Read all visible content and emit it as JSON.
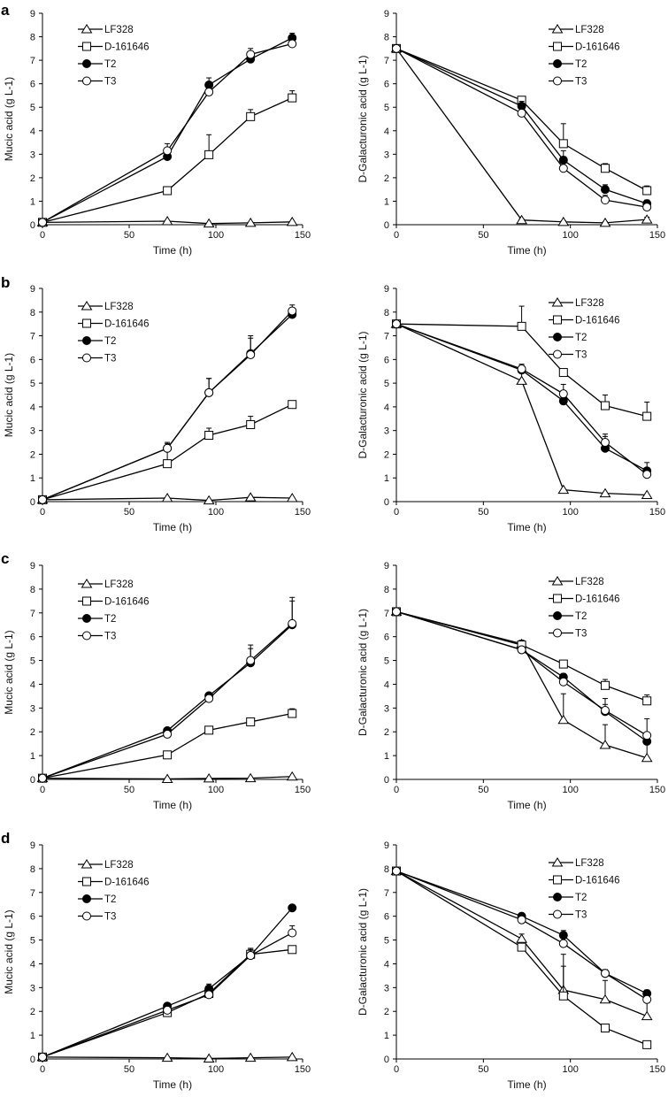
{
  "figure": {
    "panel_letters": [
      "a",
      "b",
      "c",
      "d"
    ],
    "legend_labels": [
      "LF328",
      "D-161646",
      "T2",
      "T3"
    ],
    "x_axis_label": "Time (h)",
    "mucic_y_label": "Mucic acid (g L-1)",
    "galacturonic_y_label": "D-Galacturonic acid (g L-1)"
  },
  "chart_data": [
    {
      "type": "line",
      "panel": "a",
      "title": "",
      "xlabel": "Time (h)",
      "ylabel": "Mucic acid (g L-1)",
      "xlim": [
        0,
        150
      ],
      "ylim": [
        0,
        9
      ],
      "xticks": [
        0,
        50,
        100,
        150
      ],
      "yticks": [
        0,
        1,
        2,
        3,
        4,
        5,
        6,
        7,
        8,
        9
      ],
      "legend_position": "top-left",
      "x": [
        0,
        72,
        96,
        120,
        144
      ],
      "series": [
        {
          "name": "LF328",
          "marker": "triangle-open",
          "values": [
            0.1,
            0.15,
            0.05,
            0.08,
            0.12
          ],
          "errors": [
            0,
            0,
            0,
            0,
            0
          ]
        },
        {
          "name": "D-161646",
          "marker": "square-open",
          "values": [
            0.1,
            1.45,
            2.98,
            4.6,
            5.4
          ],
          "errors": [
            0,
            0.1,
            0.85,
            0.3,
            0.3
          ]
        },
        {
          "name": "T2",
          "marker": "circle-filled",
          "values": [
            0.1,
            2.9,
            5.95,
            7.05,
            7.95
          ],
          "errors": [
            0,
            0.3,
            0.3,
            0.3,
            0.2
          ]
        },
        {
          "name": "T3",
          "marker": "circle-open",
          "values": [
            0.1,
            3.15,
            5.65,
            7.25,
            7.7
          ],
          "errors": [
            0,
            0.3,
            0.2,
            0.25,
            0.1
          ]
        }
      ]
    },
    {
      "type": "line",
      "panel": "a",
      "title": "",
      "xlabel": "Time (h)",
      "ylabel": "D-Galacturonic acid (g L-1)",
      "xlim": [
        0,
        150
      ],
      "ylim": [
        0,
        9
      ],
      "xticks": [
        0,
        50,
        100,
        150
      ],
      "yticks": [
        0,
        1,
        2,
        3,
        4,
        5,
        6,
        7,
        8,
        9
      ],
      "legend_position": "top-right",
      "x": [
        0,
        72,
        96,
        120,
        144
      ],
      "series": [
        {
          "name": "LF328",
          "marker": "triangle-open",
          "values": [
            7.5,
            0.2,
            0.12,
            0.08,
            0.22
          ],
          "errors": [
            0,
            0.05,
            0.05,
            0.05,
            0.1
          ]
        },
        {
          "name": "D-161646",
          "marker": "square-open",
          "values": [
            7.5,
            5.3,
            3.45,
            2.4,
            1.45
          ],
          "errors": [
            0,
            0.15,
            0.85,
            0.2,
            0.2
          ]
        },
        {
          "name": "T2",
          "marker": "circle-filled",
          "values": [
            7.5,
            5.05,
            2.75,
            1.5,
            0.9
          ],
          "errors": [
            0,
            0.2,
            0.4,
            0.2,
            0.15
          ]
        },
        {
          "name": "T3",
          "marker": "circle-open",
          "values": [
            7.5,
            4.75,
            2.4,
            1.05,
            0.75
          ],
          "errors": [
            0,
            0.2,
            0.5,
            0.2,
            0.1
          ]
        }
      ]
    },
    {
      "type": "line",
      "panel": "b",
      "title": "",
      "xlabel": "Time (h)",
      "ylabel": "Mucic acid (g L-1)",
      "xlim": [
        0,
        150
      ],
      "ylim": [
        0,
        9
      ],
      "xticks": [
        0,
        50,
        100,
        150
      ],
      "yticks": [
        0,
        1,
        2,
        3,
        4,
        5,
        6,
        7,
        8,
        9
      ],
      "legend_position": "top-left",
      "x": [
        0,
        72,
        96,
        120,
        144
      ],
      "series": [
        {
          "name": "LF328",
          "marker": "triangle-open",
          "values": [
            0.08,
            0.15,
            0.05,
            0.18,
            0.15
          ],
          "errors": [
            0,
            0,
            0,
            0,
            0
          ]
        },
        {
          "name": "D-161646",
          "marker": "square-open",
          "values": [
            0.08,
            1.6,
            2.8,
            3.25,
            4.1
          ],
          "errors": [
            0,
            0.65,
            0.3,
            0.35,
            0.1
          ]
        },
        {
          "name": "T2",
          "marker": "circle-filled",
          "values": [
            0.08,
            2.25,
            4.6,
            6.25,
            7.9
          ],
          "errors": [
            0,
            0.2,
            0.6,
            0.75,
            0.25
          ]
        },
        {
          "name": "T3",
          "marker": "circle-open",
          "values": [
            0.08,
            2.25,
            4.6,
            6.2,
            8.05
          ],
          "errors": [
            0,
            0.25,
            0.6,
            0.7,
            0.25
          ]
        }
      ]
    },
    {
      "type": "line",
      "panel": "b",
      "title": "",
      "xlabel": "Time (h)",
      "ylabel": "D-Galacturonic acid (g L-1)",
      "xlim": [
        0,
        150
      ],
      "ylim": [
        0,
        9
      ],
      "xticks": [
        0,
        50,
        100,
        150
      ],
      "yticks": [
        0,
        1,
        2,
        3,
        4,
        5,
        6,
        7,
        8,
        9
      ],
      "legend_position": "top-right",
      "x": [
        0,
        72,
        96,
        120,
        144
      ],
      "series": [
        {
          "name": "LF328",
          "marker": "triangle-open",
          "values": [
            7.5,
            5.1,
            0.5,
            0.35,
            0.28
          ],
          "errors": [
            0,
            0.5,
            0,
            0,
            0
          ]
        },
        {
          "name": "D-161646",
          "marker": "square-open",
          "values": [
            7.5,
            7.4,
            5.45,
            4.05,
            3.6
          ],
          "errors": [
            0,
            0.85,
            0.15,
            0.45,
            0.6
          ]
        },
        {
          "name": "T2",
          "marker": "circle-filled",
          "values": [
            7.5,
            5.55,
            4.25,
            2.25,
            1.3
          ],
          "errors": [
            0,
            0.2,
            0.25,
            0.5,
            0.35
          ]
        },
        {
          "name": "T3",
          "marker": "circle-open",
          "values": [
            7.5,
            5.6,
            4.55,
            2.5,
            1.15
          ],
          "errors": [
            0,
            0.2,
            0.4,
            0.35,
            0.2
          ]
        }
      ]
    },
    {
      "type": "line",
      "panel": "c",
      "title": "",
      "xlabel": "Time (h)",
      "ylabel": "Mucic acid (g L-1)",
      "xlim": [
        0,
        150
      ],
      "ylim": [
        0,
        9
      ],
      "xticks": [
        0,
        50,
        100,
        150
      ],
      "yticks": [
        0,
        1,
        2,
        3,
        4,
        5,
        6,
        7,
        8,
        9
      ],
      "legend_position": "top-left",
      "x": [
        0,
        72,
        96,
        120,
        144
      ],
      "series": [
        {
          "name": "LF328",
          "marker": "triangle-open",
          "values": [
            0.05,
            0.02,
            0.04,
            0.05,
            0.12
          ],
          "errors": [
            0,
            0,
            0,
            0,
            0
          ]
        },
        {
          "name": "D-161646",
          "marker": "square-open",
          "values": [
            0.05,
            1.03,
            2.07,
            2.42,
            2.77
          ],
          "errors": [
            0,
            0.05,
            0.05,
            0.05,
            0.2
          ]
        },
        {
          "name": "T2",
          "marker": "circle-filled",
          "values": [
            0.05,
            2.05,
            3.52,
            4.9,
            6.5
          ],
          "errors": [
            0,
            0.05,
            0.1,
            0.6,
            1.0
          ]
        },
        {
          "name": "T3",
          "marker": "circle-open",
          "values": [
            0.05,
            1.9,
            3.4,
            5.0,
            6.55
          ],
          "errors": [
            0,
            0.05,
            0.15,
            0.65,
            1.1
          ]
        }
      ]
    },
    {
      "type": "line",
      "panel": "c",
      "title": "",
      "xlabel": "Time (h)",
      "ylabel": "D-Galacturonic acid (g L-1)",
      "xlim": [
        0,
        150
      ],
      "ylim": [
        0,
        9
      ],
      "xticks": [
        0,
        50,
        100,
        150
      ],
      "yticks": [
        0,
        1,
        2,
        3,
        4,
        5,
        6,
        7,
        8,
        9
      ],
      "legend_position": "top-right",
      "x": [
        0,
        72,
        96,
        120,
        144
      ],
      "series": [
        {
          "name": "LF328",
          "marker": "triangle-open",
          "values": [
            7.05,
            5.7,
            2.5,
            1.45,
            0.9
          ],
          "errors": [
            0,
            0.15,
            1.1,
            0.85,
            0.65
          ]
        },
        {
          "name": "D-161646",
          "marker": "square-open",
          "values": [
            7.05,
            5.65,
            4.85,
            3.95,
            3.3
          ],
          "errors": [
            0,
            0.1,
            0.1,
            0.25,
            0.25
          ]
        },
        {
          "name": "T2",
          "marker": "circle-filled",
          "values": [
            7.05,
            5.45,
            4.3,
            2.85,
            1.6
          ],
          "errors": [
            0,
            0.1,
            0.15,
            0.3,
            0.35
          ]
        },
        {
          "name": "T3",
          "marker": "circle-open",
          "values": [
            7.05,
            5.45,
            4.1,
            2.9,
            1.85
          ],
          "errors": [
            0,
            0.1,
            0.2,
            0.5,
            0.7
          ]
        }
      ]
    },
    {
      "type": "line",
      "panel": "d",
      "title": "",
      "xlabel": "Time (h)",
      "ylabel": "Mucic acid (g L-1)",
      "xlim": [
        0,
        150
      ],
      "ylim": [
        0,
        9
      ],
      "xticks": [
        0,
        50,
        100,
        150
      ],
      "yticks": [
        0,
        1,
        2,
        3,
        4,
        5,
        6,
        7,
        8,
        9
      ],
      "legend_position": "top-left",
      "x": [
        0,
        72,
        96,
        120,
        144
      ],
      "series": [
        {
          "name": "LF328",
          "marker": "triangle-open",
          "values": [
            0.08,
            0.05,
            0.02,
            0.05,
            0.08
          ],
          "errors": [
            0,
            0,
            0,
            0,
            0
          ]
        },
        {
          "name": "D-161646",
          "marker": "square-open",
          "values": [
            0.08,
            1.95,
            2.75,
            4.4,
            4.6
          ],
          "errors": [
            0,
            0.1,
            0.15,
            0.2,
            0.05
          ]
        },
        {
          "name": "T2",
          "marker": "circle-filled",
          "values": [
            0.08,
            2.22,
            2.95,
            4.35,
            6.35
          ],
          "errors": [
            0,
            0.1,
            0.2,
            0.3,
            0.1
          ]
        },
        {
          "name": "T3",
          "marker": "circle-open",
          "values": [
            0.08,
            2.05,
            2.7,
            4.35,
            5.3
          ],
          "errors": [
            0,
            0.1,
            0.15,
            0.3,
            0.3
          ]
        }
      ]
    },
    {
      "type": "line",
      "panel": "d",
      "title": "",
      "xlabel": "Time (h)",
      "ylabel": "D-Galacturonic acid (g L-1)",
      "xlim": [
        0,
        150
      ],
      "ylim": [
        0,
        9
      ],
      "xticks": [
        0,
        50,
        100,
        150
      ],
      "yticks": [
        0,
        1,
        2,
        3,
        4,
        5,
        6,
        7,
        8,
        9
      ],
      "legend_position": "top-right",
      "x": [
        0,
        72,
        96,
        120,
        144
      ],
      "series": [
        {
          "name": "LF328",
          "marker": "triangle-open",
          "values": [
            7.9,
            5.05,
            2.9,
            2.5,
            1.8
          ],
          "errors": [
            0,
            0.2,
            1.5,
            0.8,
            0.7
          ]
        },
        {
          "name": "D-161646",
          "marker": "square-open",
          "values": [
            7.9,
            4.7,
            2.65,
            1.3,
            0.6
          ],
          "errors": [
            0,
            0.1,
            1.25,
            0.05,
            0.05
          ]
        },
        {
          "name": "T2",
          "marker": "circle-filled",
          "values": [
            7.9,
            6.0,
            5.2,
            3.6,
            2.75
          ],
          "errors": [
            0,
            0.1,
            0.2,
            0.15,
            0.15
          ]
        },
        {
          "name": "T3",
          "marker": "circle-open",
          "values": [
            7.9,
            5.85,
            4.85,
            3.6,
            2.5
          ],
          "errors": [
            0,
            0.1,
            0.4,
            0.15,
            0.15
          ]
        }
      ]
    }
  ]
}
